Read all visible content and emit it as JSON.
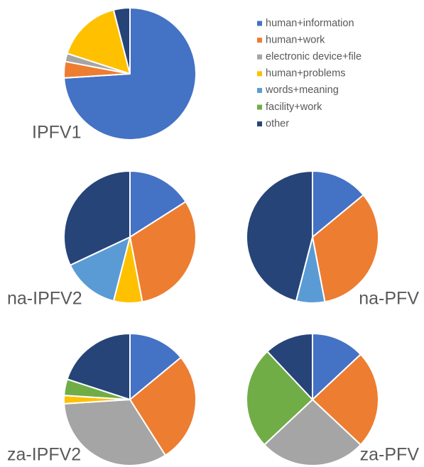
{
  "legend": {
    "labels": [
      "human+information",
      "human+work",
      "electronic device+file",
      "human+problems",
      "words+meaning",
      "facility+work",
      "other"
    ],
    "colors": [
      "#4472c4",
      "#ed7d31",
      "#a5a5a5",
      "#ffc000",
      "#5b9bd5",
      "#70ad47",
      "#264478"
    ]
  },
  "chart_data": [
    {
      "type": "pie",
      "title": "IPFV1",
      "values": [
        74,
        4,
        2,
        16,
        0,
        0,
        4
      ]
    },
    {
      "type": "pie",
      "title": "na-IPFV2",
      "values": [
        16,
        31,
        0,
        7,
        14,
        0,
        32
      ]
    },
    {
      "type": "pie",
      "title": "na-PFV",
      "values": [
        14,
        33,
        0,
        0,
        7,
        0,
        46
      ]
    },
    {
      "type": "pie",
      "title": "za-IPFV2",
      "values": [
        14,
        27,
        33,
        2,
        0,
        4,
        20
      ]
    },
    {
      "type": "pie",
      "title": "za-PFV",
      "values": [
        13,
        24,
        26,
        0,
        0,
        25,
        12
      ]
    }
  ]
}
